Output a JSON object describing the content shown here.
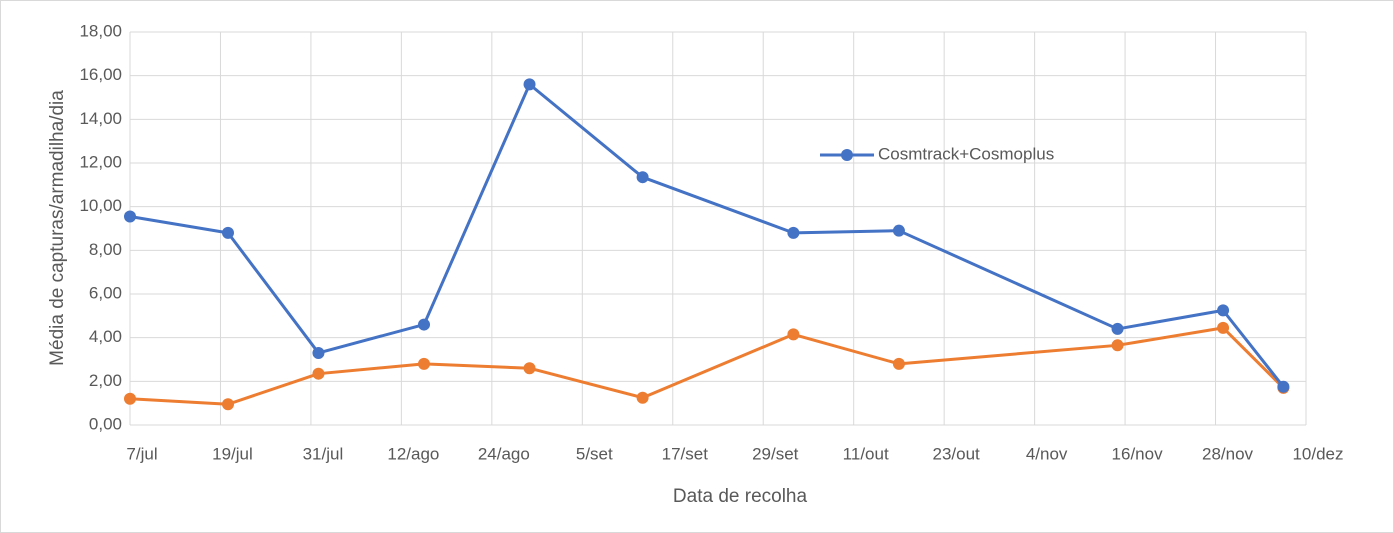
{
  "chart_data": {
    "type": "line",
    "xlabel": "Data de recolha",
    "ylabel": "Média de capturas/armadilha/dia",
    "xlim": [
      188,
      344
    ],
    "xticks": [
      {
        "value": 188,
        "label": "7/jul"
      },
      {
        "value": 200,
        "label": "19/jul"
      },
      {
        "value": 212,
        "label": "31/jul"
      },
      {
        "value": 224,
        "label": "12/ago"
      },
      {
        "value": 236,
        "label": "24/ago"
      },
      {
        "value": 248,
        "label": "5/set"
      },
      {
        "value": 260,
        "label": "17/set"
      },
      {
        "value": 272,
        "label": "29/set"
      },
      {
        "value": 284,
        "label": "11/out"
      },
      {
        "value": 296,
        "label": "23/out"
      },
      {
        "value": 308,
        "label": "4/nov"
      },
      {
        "value": 320,
        "label": "16/nov"
      },
      {
        "value": 332,
        "label": "28/nov"
      },
      {
        "value": 344,
        "label": "10/dez"
      }
    ],
    "ylim": [
      0,
      18
    ],
    "yticks": [
      {
        "value": 0,
        "label": "0,00"
      },
      {
        "value": 2,
        "label": "2,00"
      },
      {
        "value": 4,
        "label": "4,00"
      },
      {
        "value": 6,
        "label": "6,00"
      },
      {
        "value": 8,
        "label": "8,00"
      },
      {
        "value": 10,
        "label": "10,00"
      },
      {
        "value": 12,
        "label": "12,00"
      },
      {
        "value": 14,
        "label": "14,00"
      },
      {
        "value": 16,
        "label": "16,00"
      },
      {
        "value": 18,
        "label": "18,00"
      }
    ],
    "grid": true,
    "x": [
      188,
      201,
      213,
      227,
      241,
      256,
      276,
      290,
      319,
      333,
      341
    ],
    "series": [
      {
        "name": "Cosmtrack+Cosmoplus",
        "color": "#4472c4",
        "values": [
          9.55,
          8.8,
          3.3,
          4.6,
          15.6,
          11.35,
          8.8,
          8.9,
          4.4,
          5.25,
          1.75
        ]
      },
      {
        "color": "#ed7d31",
        "values": [
          1.2,
          0.95,
          2.35,
          2.8,
          2.6,
          1.25,
          4.15,
          2.8,
          3.65,
          4.45,
          1.7
        ]
      }
    ]
  }
}
